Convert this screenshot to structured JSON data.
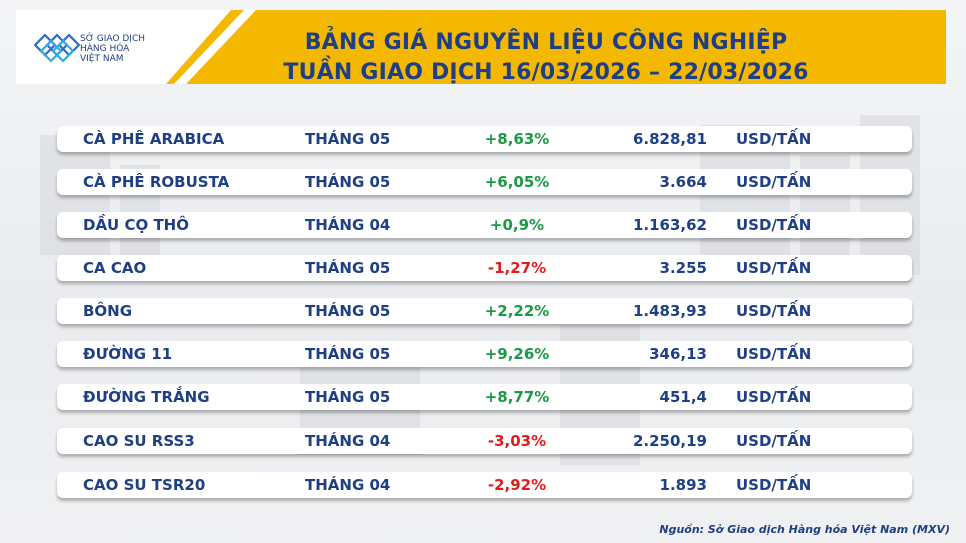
{
  "header": {
    "logo_text": "SỞ GIAO DỊCH\nHÀNG HÓA\nVIỆT NAM",
    "title_line1": "BẢNG GIÁ NGUYÊN LIỆU CÔNG NGHIỆP",
    "title_line2": "TUẦN GIAO DỊCH 16/03/2026 – 22/03/2026"
  },
  "colors": {
    "brand_blue": "#1f3f84",
    "header_yellow": "#f5b800",
    "positive": "#1a9a45",
    "negative": "#e01d1d"
  },
  "rows": [
    {
      "name": "CÀ PHÊ ARABICA",
      "month": "THÁNG 05",
      "change": "+8,63%",
      "direction": "up",
      "price": "6.828,81",
      "unit": "USD/TẤN"
    },
    {
      "name": "CÀ PHÊ ROBUSTA",
      "month": "THÁNG 05",
      "change": "+6,05%",
      "direction": "up",
      "price": "3.664",
      "unit": "USD/TẤN"
    },
    {
      "name": "DẦU CỌ THÔ",
      "month": "THÁNG 04",
      "change": "+0,9%",
      "direction": "up",
      "price": "1.163,62",
      "unit": "USD/TẤN"
    },
    {
      "name": "CA CAO",
      "month": "THÁNG 05",
      "change": "-1,27%",
      "direction": "down",
      "price": "3.255",
      "unit": "USD/TẤN"
    },
    {
      "name": "BÔNG",
      "month": "THÁNG 05",
      "change": "+2,22%",
      "direction": "up",
      "price": "1.483,93",
      "unit": "USD/TẤN"
    },
    {
      "name": "ĐƯỜNG 11",
      "month": "THÁNG 05",
      "change": "+9,26%",
      "direction": "up",
      "price": "346,13",
      "unit": "USD/TẤN"
    },
    {
      "name": "ĐƯỜNG TRẮNG",
      "month": "THÁNG 05",
      "change": "+8,77%",
      "direction": "up",
      "price": "451,4",
      "unit": "USD/TẤN"
    },
    {
      "name": "CAO SU RSS3",
      "month": "THÁNG 04",
      "change": "-3,03%",
      "direction": "down",
      "price": "2.250,19",
      "unit": "USD/TẤN"
    },
    {
      "name": "CAO SU TSR20",
      "month": "THÁNG 04",
      "change": "-2,92%",
      "direction": "down",
      "price": "1.893",
      "unit": "USD/TẤN"
    }
  ],
  "footer": {
    "source": "Nguồn: Sở Giao dịch Hàng hóa Việt Nam (MXV)"
  }
}
